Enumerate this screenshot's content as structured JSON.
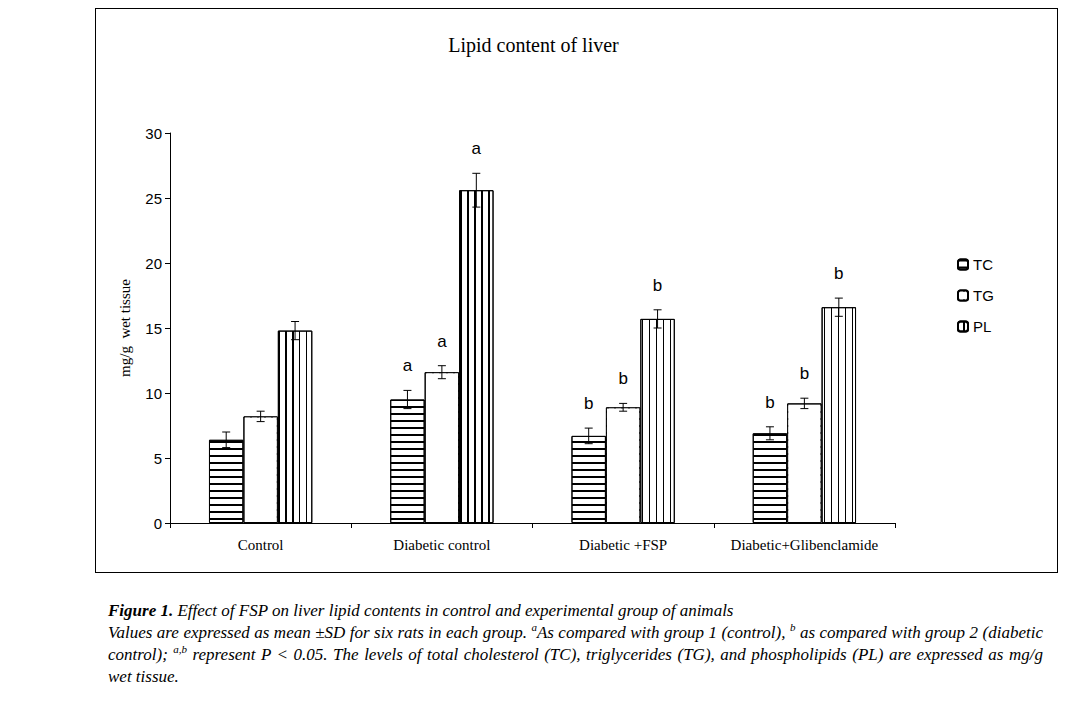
{
  "chart_data": {
    "type": "bar",
    "title": "Lipid content of liver",
    "categories": [
      "Control",
      "Diabetic control",
      "Diabetic +FSP",
      "Diabetic+Glibenclamide"
    ],
    "y_label": "mg/g  wet tissue",
    "ylim": [
      0,
      30
    ],
    "yticks": [
      0,
      5,
      10,
      15,
      20,
      25,
      30
    ],
    "grid": false,
    "legend": "right",
    "series": [
      {
        "name": "TC",
        "color": "#ffffff",
        "marker": "horizontal",
        "values": [
          6.4,
          9.5,
          6.7,
          6.9
        ],
        "error": [
          0.6,
          0.7,
          0.6,
          0.5
        ],
        "significance": [
          null,
          "a",
          "b",
          "b"
        ]
      },
      {
        "name": "TG",
        "color": "#ffffff",
        "marker": "grid",
        "values": [
          8.2,
          11.6,
          8.9,
          9.2
        ],
        "error": [
          0.4,
          0.5,
          0.3,
          0.4
        ],
        "significance": [
          null,
          "a",
          "b",
          "b"
        ]
      },
      {
        "name": "PL",
        "color": "#ffffff",
        "marker": "vertical",
        "values": [
          14.8,
          25.6,
          15.7,
          16.6
        ],
        "error": [
          0.7,
          1.3,
          0.7,
          0.7
        ],
        "significance": [
          null,
          "a",
          "b",
          "b"
        ]
      }
    ],
    "caption": {
      "label": "Figure 1.",
      "title": "Effect of FSP on liver lipid contents in control and experimental group of animals",
      "text": [
        {
          "text": "Values are expressed as mean ±SD for six rats in each group. "
        },
        {
          "sup": "a"
        },
        {
          "text": "As compared with group 1 (control), "
        },
        {
          "sup": "b"
        },
        {
          "text": " as compared with group 2 (diabetic control);  "
        },
        {
          "sup": "a,b"
        },
        {
          "text": " represent P < 0.05. The levels of total cholesterol (TC), triglycerides (TG), and phospholipids (PL) are expressed as mg/g wet tissue."
        }
      ]
    }
  }
}
